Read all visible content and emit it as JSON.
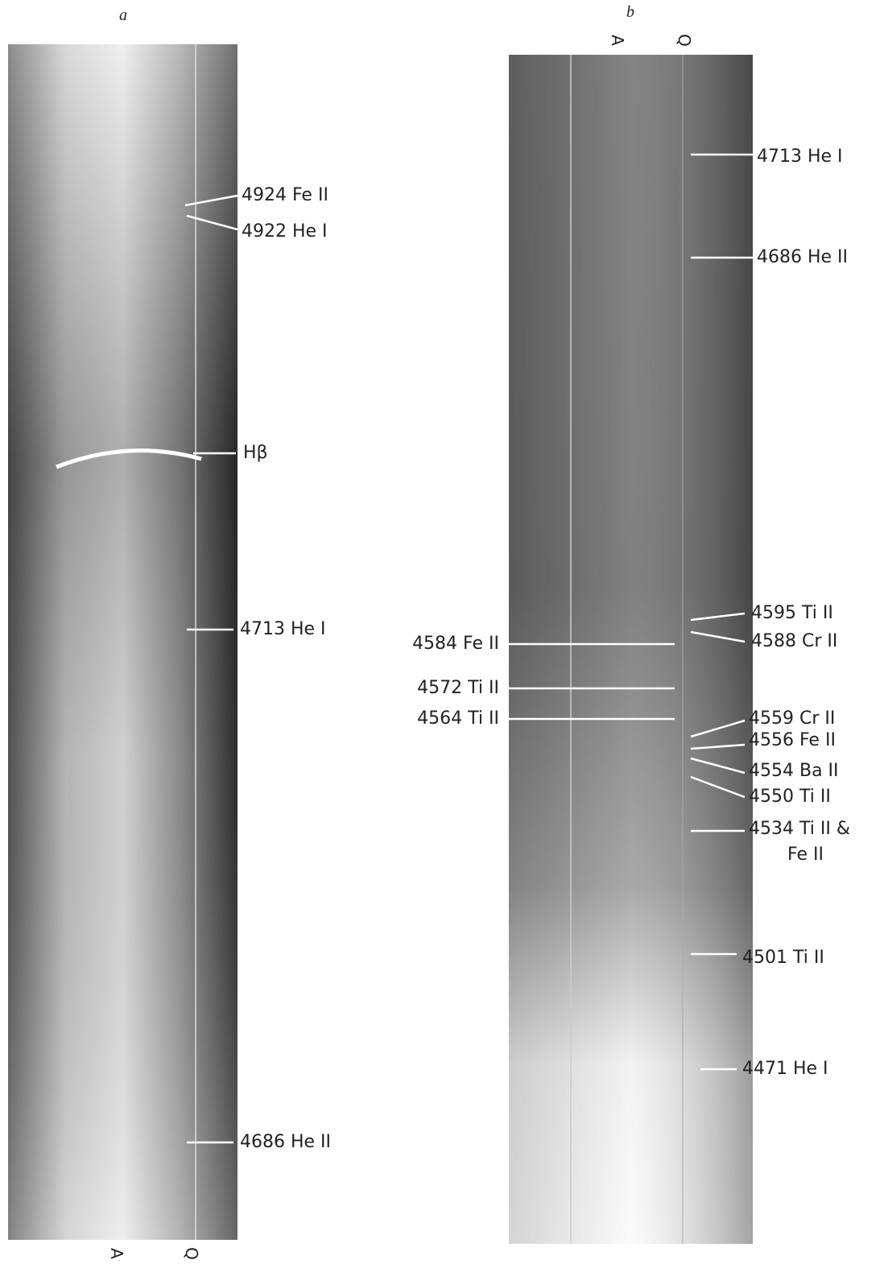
{
  "panels": [
    {
      "letter": "a",
      "markers": [
        "A",
        "Q"
      ],
      "labels": [
        "4924 Fe II",
        "4922 He I",
        "Hβ",
        "4713 He I",
        "4686 He II"
      ]
    },
    {
      "letter": "b",
      "markers": [
        "A",
        "Q"
      ],
      "labels": [
        "4713 He I",
        "4686 He II",
        "4595 Ti II",
        "4588 Cr II",
        "4584 Fe II",
        "4572 Ti II",
        "4564 Ti II",
        "4559 Cr II",
        "4556 Fe II",
        "4554 Ba II",
        "4550 Ti II",
        "4534 Ti II &",
        "Fe II",
        "4501 Ti II",
        "4471 He I"
      ]
    }
  ]
}
